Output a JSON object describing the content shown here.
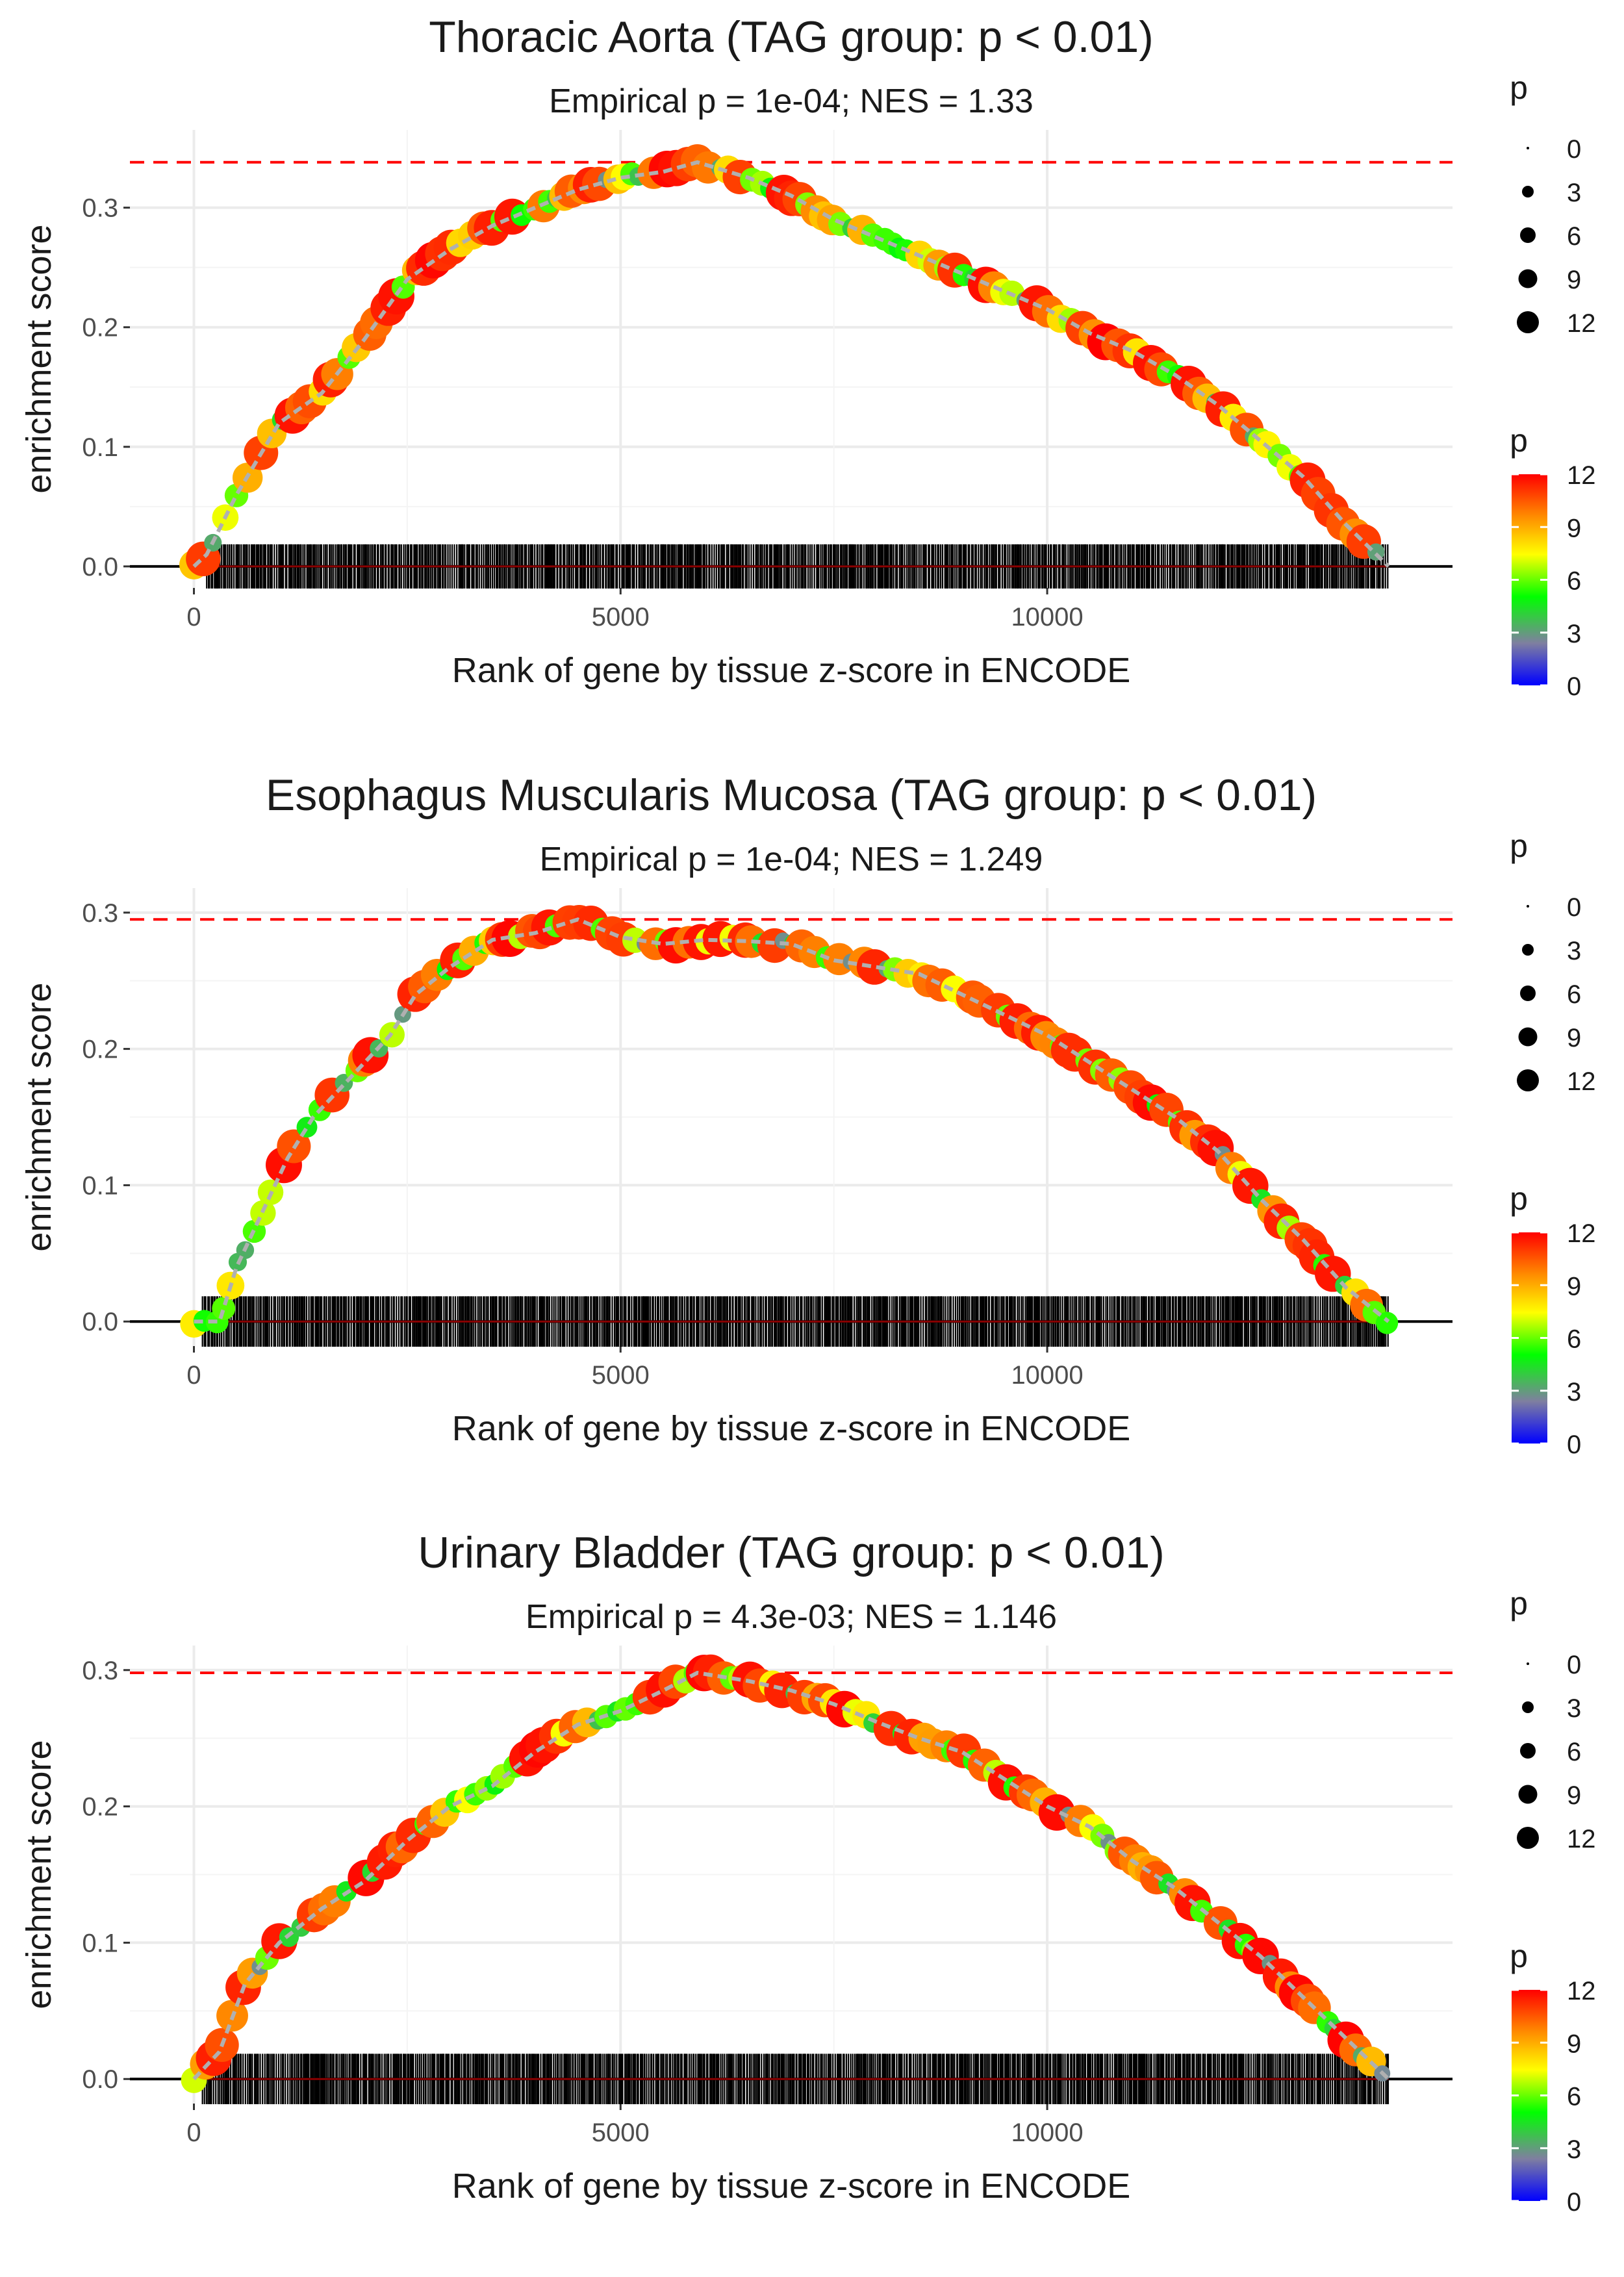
{
  "chart_data": [
    {
      "type": "line",
      "title": "Thoracic Aorta (TAG group: p < 0.01)",
      "subtitle": "Empirical p = 1e-04; NES = 1.33",
      "xlabel": "Rank of gene by tissue z-score in ENCODE",
      "ylabel": "enrichment score",
      "xlim": [
        -750,
        14750
      ],
      "ylim": [
        -0.018,
        0.365
      ],
      "x_ticks": [
        0,
        5000,
        10000
      ],
      "x_tick_labels": [
        "0",
        "5000",
        "10000"
      ],
      "y_ticks": [
        0.0,
        0.1,
        0.2,
        0.3
      ],
      "y_tick_labels": [
        "0.0",
        "0.1",
        "0.2",
        "0.3"
      ],
      "max_es": 0.338,
      "n_genes": 14000,
      "peak_rank": 5900,
      "curve": {
        "x": [
          0,
          150,
          500,
          1000,
          1500,
          2000,
          2500,
          3000,
          3500,
          4000,
          4500,
          5000,
          5500,
          5900,
          6500,
          7000,
          7500,
          8000,
          8500,
          9000,
          9500,
          10000,
          10500,
          11000,
          11500,
          12000,
          12500,
          13000,
          13500,
          14000
        ],
        "y": [
          0.0,
          0.01,
          0.06,
          0.12,
          0.145,
          0.19,
          0.24,
          0.265,
          0.285,
          0.3,
          0.315,
          0.325,
          0.33,
          0.338,
          0.325,
          0.31,
          0.29,
          0.275,
          0.26,
          0.245,
          0.23,
          0.215,
          0.195,
          0.18,
          0.16,
          0.135,
          0.105,
          0.075,
          0.035,
          0.0
        ]
      },
      "legend_size": {
        "title": "p",
        "labels": [
          "0",
          "3",
          "6",
          "9",
          "12"
        ],
        "values": [
          0,
          3,
          6,
          9,
          12
        ]
      },
      "legend_color": {
        "title": "p",
        "labels": [
          "0",
          "3",
          "6",
          "9",
          "12"
        ],
        "values": [
          0,
          3,
          6,
          9,
          12
        ]
      }
    },
    {
      "type": "line",
      "title": "Esophagus Muscularis Mucosa (TAG group: p < 0.01)",
      "subtitle": "Empirical p = 1e-04; NES = 1.249",
      "xlabel": "Rank of gene by tissue z-score in ENCODE",
      "ylabel": "enrichment score",
      "xlim": [
        -750,
        14750
      ],
      "ylim": [
        -0.018,
        0.318
      ],
      "x_ticks": [
        0,
        5000,
        10000
      ],
      "x_tick_labels": [
        "0",
        "5000",
        "10000"
      ],
      "y_ticks": [
        0.0,
        0.1,
        0.2,
        0.3
      ],
      "y_tick_labels": [
        "0.0",
        "0.1",
        "0.2",
        "0.3"
      ],
      "max_es": 0.295,
      "n_genes": 14000,
      "peak_rank": 4500,
      "curve": {
        "x": [
          0,
          300,
          500,
          800,
          1100,
          1400,
          1700,
          2000,
          2300,
          2600,
          3000,
          3500,
          4000,
          4500,
          5000,
          5500,
          6000,
          6500,
          7000,
          7500,
          8000,
          8500,
          9000,
          9500,
          10000,
          10500,
          11000,
          11500,
          12000,
          12500,
          13000,
          13500,
          14000
        ],
        "y": [
          0.0,
          0.0,
          0.04,
          0.08,
          0.12,
          0.15,
          0.17,
          0.19,
          0.21,
          0.24,
          0.26,
          0.28,
          0.285,
          0.295,
          0.282,
          0.277,
          0.28,
          0.279,
          0.277,
          0.265,
          0.26,
          0.255,
          0.24,
          0.225,
          0.21,
          0.19,
          0.17,
          0.15,
          0.125,
          0.09,
          0.06,
          0.025,
          0.0
        ]
      },
      "legend_size": {
        "title": "p",
        "labels": [
          "0",
          "3",
          "6",
          "9",
          "12"
        ],
        "values": [
          0,
          3,
          6,
          9,
          12
        ]
      },
      "legend_color": {
        "title": "p",
        "labels": [
          "0",
          "3",
          "6",
          "9",
          "12"
        ],
        "values": [
          0,
          3,
          6,
          9,
          12
        ]
      }
    },
    {
      "type": "line",
      "title": "Urinary Bladder (TAG group: p < 0.01)",
      "subtitle": "Empirical p = 4.3e-03; NES = 1.146",
      "xlabel": "Rank of gene by tissue z-score in ENCODE",
      "ylabel": "enrichment score",
      "xlim": [
        -750,
        14750
      ],
      "ylim": [
        -0.018,
        0.318
      ],
      "x_ticks": [
        0,
        5000,
        10000
      ],
      "x_tick_labels": [
        "0",
        "5000",
        "10000"
      ],
      "y_ticks": [
        0.0,
        0.1,
        0.2,
        0.3
      ],
      "y_tick_labels": [
        "0.0",
        "0.1",
        "0.2",
        "0.3"
      ],
      "max_es": 0.298,
      "n_genes": 14000,
      "peak_rank": 5900,
      "curve": {
        "x": [
          0,
          300,
          600,
          1000,
          1500,
          2000,
          2500,
          3000,
          3500,
          4000,
          4500,
          5000,
          5500,
          5900,
          6500,
          7000,
          7500,
          8000,
          8500,
          9000,
          9500,
          10000,
          10500,
          11000,
          11500,
          12000,
          12500,
          13000,
          13500,
          14000
        ],
        "y": [
          0.0,
          0.02,
          0.07,
          0.1,
          0.125,
          0.145,
          0.175,
          0.2,
          0.215,
          0.24,
          0.26,
          0.27,
          0.285,
          0.298,
          0.292,
          0.285,
          0.275,
          0.262,
          0.25,
          0.24,
          0.22,
          0.2,
          0.185,
          0.16,
          0.14,
          0.115,
          0.09,
          0.06,
          0.03,
          0.0
        ]
      },
      "legend_size": {
        "title": "p",
        "labels": [
          "0",
          "3",
          "6",
          "9",
          "12"
        ],
        "values": [
          0,
          3,
          6,
          9,
          12
        ]
      },
      "legend_color": {
        "title": "p",
        "labels": [
          "0",
          "3",
          "6",
          "9",
          "12"
        ],
        "values": [
          0,
          3,
          6,
          9,
          12
        ]
      }
    }
  ],
  "colors": {
    "curve_line": "#b0b0b0",
    "ref_line": "#ff0000",
    "zero_line": "#000000",
    "grid": "#ebebeb",
    "gradient": [
      "#0000ff",
      "#7f7fa0",
      "#00ff00",
      "#ffff00",
      "#ff8c00",
      "#ff0000"
    ]
  }
}
